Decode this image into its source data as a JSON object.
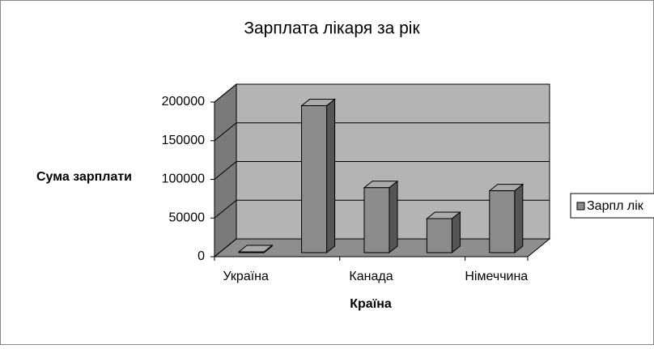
{
  "chart_data": {
    "type": "bar",
    "title": "Зарплата лікаря за рік",
    "categories": [
      "Україна",
      null,
      "Канада",
      null,
      "Німеччина"
    ],
    "series": [
      {
        "name": "Зарпл лік",
        "color": "#8c8c8c",
        "values": [
          1000,
          190000,
          84000,
          44000,
          80000
        ]
      }
    ],
    "ylim": [
      0,
      200000
    ],
    "yticks": [
      0,
      50000,
      100000,
      150000,
      200000
    ],
    "grid": true,
    "xlabel": "Країна",
    "ylabel": "Сума зарплати",
    "legend": "right"
  }
}
